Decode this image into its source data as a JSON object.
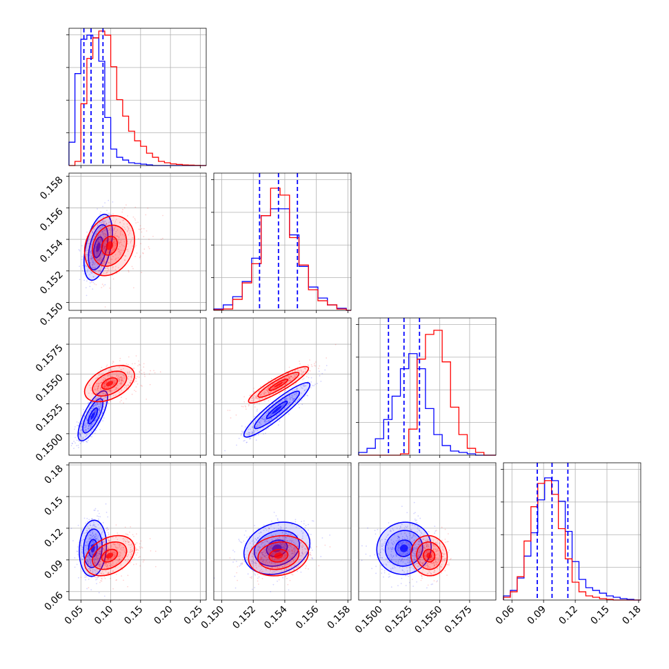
{
  "chart_data": {
    "type": "corner",
    "parameters": 4,
    "colors": {
      "model_a": "#0000ff",
      "model_b": "#ff0000",
      "quantile_lines": "#0000ff",
      "grid": "#b0b0b0"
    },
    "grid": true,
    "axes": [
      {
        "range": [
          0.03,
          0.26
        ],
        "ticks": [
          0.05,
          0.1,
          0.15,
          0.2,
          0.25
        ],
        "tick_labels": [
          "0.05",
          "0.10",
          "0.15",
          "0.20",
          "0.25"
        ]
      },
      {
        "range": [
          0.1495,
          0.1582
        ],
        "ticks": [
          0.15,
          0.152,
          0.154,
          0.156,
          0.158
        ],
        "tick_labels": [
          "0.150",
          "0.152",
          "0.154",
          "0.156",
          "0.158"
        ]
      },
      {
        "range": [
          0.1482,
          0.1597
        ],
        "ticks": [
          0.15,
          0.1525,
          0.155,
          0.1575
        ],
        "tick_labels": [
          "0.1500",
          "0.1525",
          "0.1550",
          "0.1575"
        ]
      },
      {
        "range": [
          0.052,
          0.182
        ],
        "ticks": [
          0.06,
          0.09,
          0.12,
          0.15,
          0.18
        ],
        "tick_labels": [
          "0.06",
          "0.09",
          "0.12",
          "0.15",
          "0.18"
        ]
      }
    ],
    "quantiles": [
      [
        0.055,
        0.067,
        0.087
      ],
      [
        0.1524,
        0.1536,
        0.1548
      ],
      [
        0.1507,
        0.152,
        0.1533
      ],
      [
        0.084,
        0.098,
        0.113
      ]
    ],
    "histograms": [
      {
        "bin_edges": [
          0.03,
          0.04,
          0.05,
          0.06,
          0.07,
          0.08,
          0.09,
          0.1,
          0.11,
          0.12,
          0.13,
          0.14,
          0.15,
          0.16,
          0.17,
          0.18,
          0.19,
          0.2,
          0.21,
          0.22,
          0.23,
          0.24,
          0.25,
          0.26
        ],
        "series": [
          {
            "color": "blue",
            "values": [
              0.17,
              0.67,
              0.92,
              0.95,
              0.93,
              0.76,
              0.35,
              0.12,
              0.06,
              0.04,
              0.02,
              0.015,
              0.01,
              0.005,
              0.0,
              0.0,
              0.0,
              0.0,
              0.0,
              0.0,
              0.0,
              0.0,
              0.0
            ]
          },
          {
            "color": "red",
            "values": [
              0.0,
              0.03,
              0.45,
              0.78,
              0.93,
              0.98,
              0.95,
              0.72,
              0.48,
              0.36,
              0.25,
              0.18,
              0.14,
              0.09,
              0.06,
              0.03,
              0.02,
              0.012,
              0.008,
              0.004,
              0.003,
              0.001,
              0.0
            ]
          }
        ]
      },
      {
        "bin_edges": [
          0.1495,
          0.1501,
          0.1507,
          0.1513,
          0.1519,
          0.1525,
          0.1531,
          0.1537,
          0.1543,
          0.1549,
          0.1555,
          0.1561,
          0.1567,
          0.1573,
          0.1579,
          0.1582
        ],
        "series": [
          {
            "color": "blue",
            "values": [
              0.01,
              0.04,
              0.1,
              0.21,
              0.38,
              0.69,
              0.74,
              0.74,
              0.55,
              0.32,
              0.17,
              0.09,
              0.04,
              0.015,
              0.0
            ]
          },
          {
            "color": "red",
            "values": [
              0.005,
              0.01,
              0.08,
              0.2,
              0.34,
              0.69,
              0.89,
              0.84,
              0.53,
              0.33,
              0.15,
              0.07,
              0.04,
              0.01,
              0.0
            ]
          }
        ]
      },
      {
        "bin_edges": [
          0.1482,
          0.1489,
          0.1496,
          0.1503,
          0.151,
          0.1517,
          0.1524,
          0.1531,
          0.1538,
          0.1545,
          0.1552,
          0.1559,
          0.1566,
          0.1573,
          0.158,
          0.1587,
          0.1597
        ],
        "series": [
          {
            "color": "blue",
            "values": [
              0.02,
              0.05,
              0.12,
              0.26,
              0.43,
              0.63,
              0.74,
              0.63,
              0.34,
              0.15,
              0.07,
              0.03,
              0.02,
              0.01,
              0.0,
              0.0
            ]
          },
          {
            "color": "red",
            "values": [
              0.0,
              0.0,
              0.0,
              0.0,
              0.0,
              0.01,
              0.19,
              0.7,
              0.88,
              0.91,
              0.68,
              0.35,
              0.15,
              0.05,
              0.02,
              0.0
            ]
          }
        ]
      },
      {
        "bin_edges": [
          0.052,
          0.0585,
          0.065,
          0.0715,
          0.078,
          0.0845,
          0.091,
          0.0975,
          0.104,
          0.1105,
          0.117,
          0.1235,
          0.13,
          0.1365,
          0.143,
          0.1495,
          0.156,
          0.1625,
          0.169,
          0.1755,
          0.182
        ],
        "series": [
          {
            "color": "blue",
            "values": [
              0.03,
              0.07,
              0.16,
              0.32,
              0.49,
              0.73,
              0.89,
              0.87,
              0.72,
              0.5,
              0.28,
              0.15,
              0.09,
              0.07,
              0.05,
              0.03,
              0.02,
              0.01,
              0.005,
              0.0
            ]
          },
          {
            "color": "red",
            "values": [
              0.02,
              0.06,
              0.17,
              0.43,
              0.68,
              0.85,
              0.87,
              0.77,
              0.52,
              0.3,
              0.13,
              0.06,
              0.03,
              0.02,
              0.01,
              0.005,
              0.0,
              0.0,
              0.0,
              0.0
            ]
          }
        ]
      }
    ],
    "pairs": [
      {
        "row": 1,
        "col": 0,
        "blue": {
          "mean": [
            0.079,
            0.1535
          ],
          "sd": [
            0.0125,
            0.0011
          ],
          "corr": 0.45
        },
        "red": {
          "mean": [
            0.098,
            0.1536
          ],
          "sd": [
            0.022,
            0.001
          ],
          "corr": 0.2
        }
      },
      {
        "row": 2,
        "col": 0,
        "blue": {
          "mean": [
            0.07,
            0.1515
          ],
          "sd": [
            0.013,
            0.0011
          ],
          "corr": 0.75
        },
        "red": {
          "mean": [
            0.098,
            0.1542
          ],
          "sd": [
            0.022,
            0.0008
          ],
          "corr": 0.45
        }
      },
      {
        "row": 2,
        "col": 1,
        "blue": {
          "mean": [
            0.1535,
            0.152
          ],
          "sd": [
            0.0011,
            0.0012
          ],
          "corr": 0.92
        },
        "red": {
          "mean": [
            0.1536,
            0.1541
          ],
          "sd": [
            0.001,
            0.0008
          ],
          "corr": 0.9
        }
      },
      {
        "row": 3,
        "col": 0,
        "blue": {
          "mean": [
            0.07,
            0.101
          ],
          "sd": [
            0.012,
            0.014
          ],
          "corr": 0.1
        },
        "red": {
          "mean": [
            0.098,
            0.094
          ],
          "sd": [
            0.022,
            0.01
          ],
          "corr": 0.35
        }
      },
      {
        "row": 3,
        "col": 1,
        "blue": {
          "mean": [
            0.1535,
            0.101
          ],
          "sd": [
            0.0011,
            0.013
          ],
          "corr": 0.2
        },
        "red": {
          "mean": [
            0.1536,
            0.094
          ],
          "sd": [
            0.001,
            0.01
          ],
          "corr": 0.15
        }
      },
      {
        "row": 3,
        "col": 2,
        "blue": {
          "mean": [
            0.152,
            0.101
          ],
          "sd": [
            0.0012,
            0.013
          ],
          "corr": 0.05
        },
        "red": {
          "mean": [
            0.1541,
            0.094
          ],
          "sd": [
            0.0008,
            0.01
          ],
          "corr": -0.05
        }
      }
    ],
    "contour_levels_sigma": [
      0.6,
      1.3,
      1.9
    ]
  }
}
